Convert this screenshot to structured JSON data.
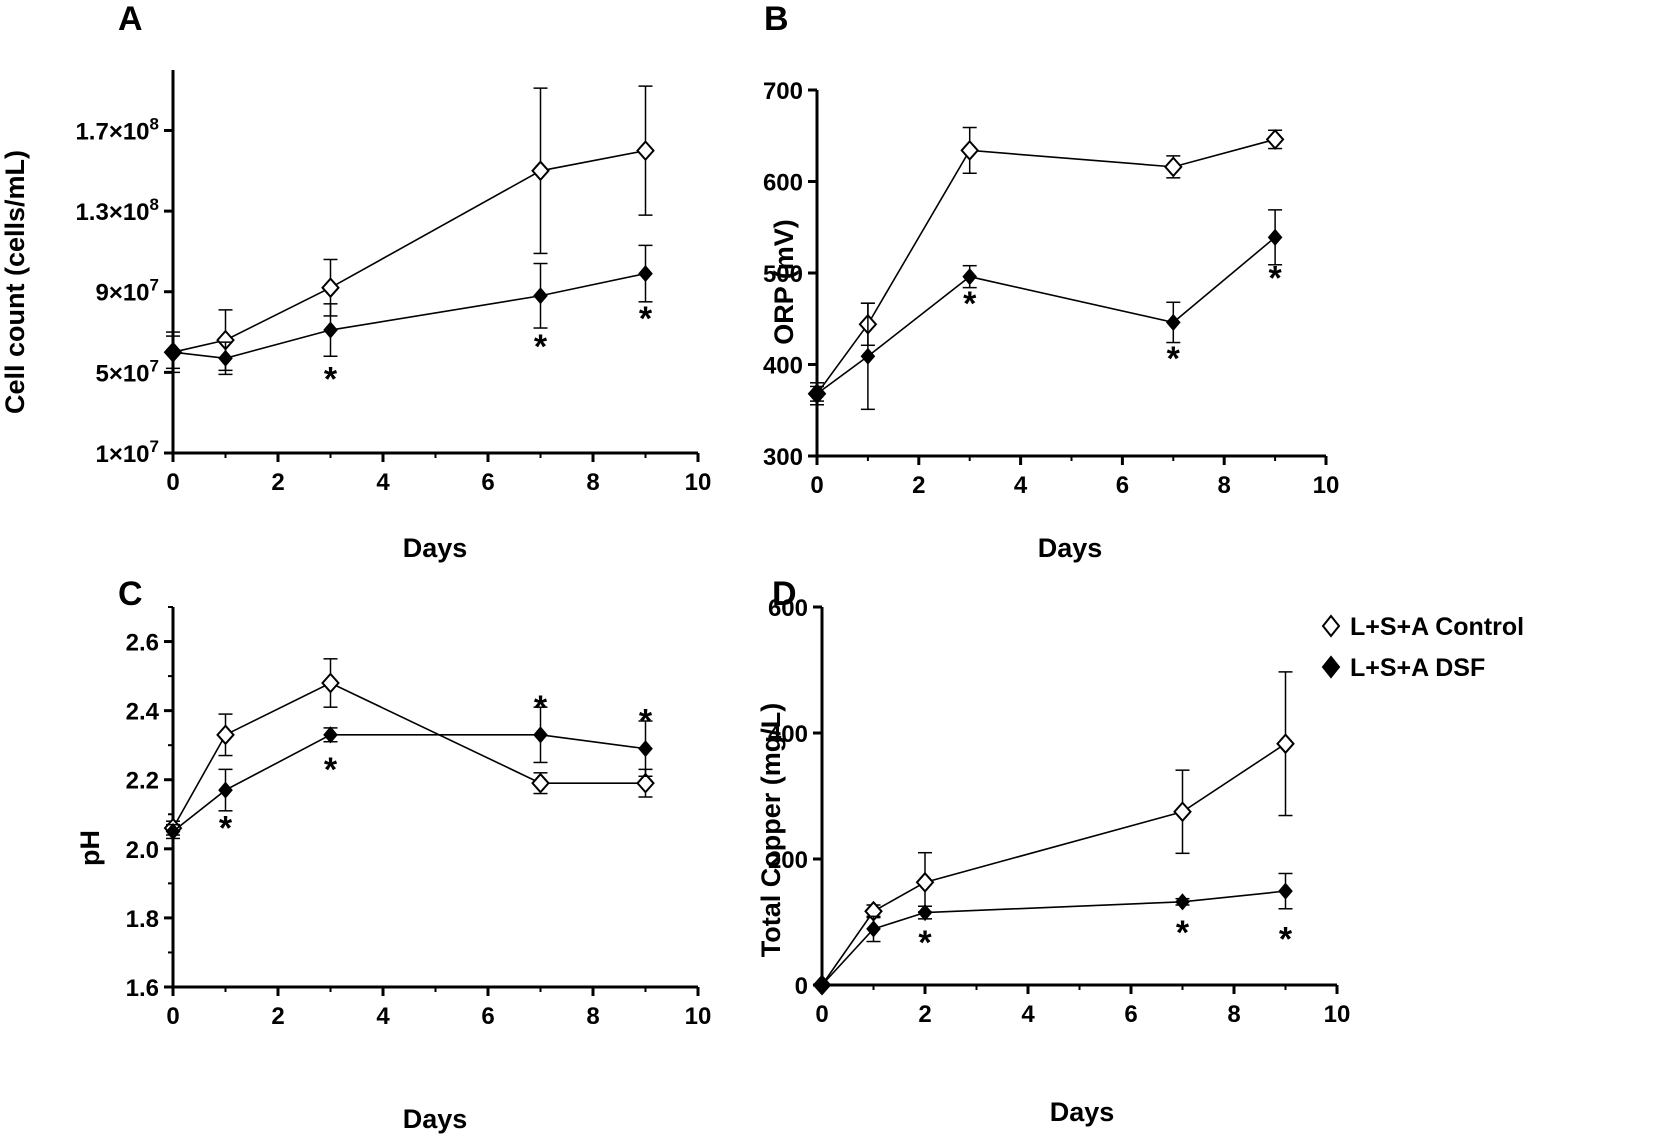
{
  "colors": {
    "axis": "#000000",
    "control_fill": "#ffffff",
    "dsf_fill": "#000000",
    "line": "#000000"
  },
  "legend": {
    "entries": [
      {
        "label": "L+S+A Control",
        "marker": "open-diamond"
      },
      {
        "label": "L+S+A DSF",
        "marker": "filled-diamond"
      }
    ]
  },
  "chart_data": [
    {
      "panel": "A",
      "type": "line",
      "xlabel": "Days",
      "ylabel": "Cell count (cells/mL)",
      "xlim": [
        0,
        10
      ],
      "ylim": [
        10000000,
        200000000
      ],
      "xticks": [
        0,
        2,
        4,
        6,
        8,
        10
      ],
      "yticks": [
        10000000,
        50000000,
        90000000,
        130000000,
        170000000
      ],
      "ytick_labels": [
        {
          "mant": "1",
          "exp": "7"
        },
        {
          "mant": "5",
          "exp": "7"
        },
        {
          "mant": "9",
          "exp": "7"
        },
        {
          "mant": "1.3",
          "exp": "8"
        },
        {
          "mant": "1.7",
          "exp": "8"
        }
      ],
      "series": [
        {
          "name": "L+S+A Control",
          "marker": "open-diamond",
          "x": [
            0,
            1,
            3,
            7,
            9
          ],
          "y": [
            60000000,
            66000000,
            92000000,
            150000000,
            160000000
          ],
          "err": [
            10000000,
            15000000,
            14000000,
            41000000,
            32000000
          ]
        },
        {
          "name": "L+S+A DSF",
          "marker": "filled-diamond",
          "x": [
            0,
            1,
            3,
            7,
            9
          ],
          "y": [
            60000000,
            57000000,
            71000000,
            88000000,
            99000000
          ],
          "err": [
            8000000,
            8000000,
            13000000,
            16000000,
            14000000
          ]
        }
      ],
      "significance": [
        {
          "x": 3,
          "y": 52000000,
          "label": "*"
        },
        {
          "x": 7,
          "y": 68000000,
          "label": "*"
        },
        {
          "x": 9,
          "y": 82000000,
          "label": "*"
        }
      ]
    },
    {
      "panel": "B",
      "type": "line",
      "xlabel": "Days",
      "ylabel": "ORP (mV)",
      "xlim": [
        0,
        10
      ],
      "ylim": [
        300,
        700
      ],
      "xticks": [
        0,
        2,
        4,
        6,
        8,
        10
      ],
      "yticks": [
        300,
        400,
        500,
        600,
        700
      ],
      "ytick_labels": [
        "300",
        "400",
        "500",
        "600",
        "700"
      ],
      "series": [
        {
          "name": "L+S+A Control",
          "marker": "open-diamond",
          "x": [
            0,
            1,
            3,
            7,
            9
          ],
          "y": [
            368,
            444,
            634,
            616,
            646
          ],
          "err": [
            8,
            23,
            25,
            12,
            10
          ]
        },
        {
          "name": "L+S+A DSF",
          "marker": "filled-diamond",
          "x": [
            0,
            1,
            3,
            7,
            9
          ],
          "y": [
            368,
            409,
            496,
            446,
            539
          ],
          "err": [
            12,
            58,
            12,
            22,
            30
          ]
        }
      ],
      "significance": [
        {
          "x": 3,
          "y": 478,
          "label": "*"
        },
        {
          "x": 7,
          "y": 418,
          "label": "*"
        },
        {
          "x": 9,
          "y": 506,
          "label": "*"
        }
      ]
    },
    {
      "panel": "C",
      "type": "line",
      "xlabel": "Days",
      "ylabel": "pH",
      "xlim": [
        0,
        10
      ],
      "ylim": [
        1.6,
        2.7
      ],
      "xticks": [
        0,
        2,
        4,
        6,
        8,
        10
      ],
      "yticks": [
        1.6,
        1.8,
        2.0,
        2.2,
        2.4,
        2.6
      ],
      "ytick_labels": [
        "1.6",
        "1.8",
        "2.0",
        "2.2",
        "2.4",
        "2.6"
      ],
      "series": [
        {
          "name": "L+S+A Control",
          "marker": "open-diamond",
          "x": [
            0,
            1,
            3,
            7,
            9
          ],
          "y": [
            2.06,
            2.33,
            2.48,
            2.19,
            2.19
          ],
          "err": [
            0.02,
            0.06,
            0.07,
            0.03,
            0.04
          ]
        },
        {
          "name": "L+S+A DSF",
          "marker": "filled-diamond",
          "x": [
            0,
            1,
            3,
            7,
            9
          ],
          "y": [
            2.05,
            2.17,
            2.33,
            2.33,
            2.29
          ],
          "err": [
            0.02,
            0.06,
            0.02,
            0.08,
            0.08
          ]
        }
      ],
      "significance": [
        {
          "x": 1,
          "y": 2.09,
          "label": "*"
        },
        {
          "x": 3,
          "y": 2.26,
          "label": "*"
        },
        {
          "x": 7,
          "y": 2.44,
          "label": "*"
        },
        {
          "x": 9,
          "y": 2.4,
          "label": "*"
        }
      ]
    },
    {
      "panel": "D",
      "type": "line",
      "xlabel": "Days",
      "ylabel": "Total Copper (mg/L)",
      "xlim": [
        0,
        10
      ],
      "ylim": [
        0,
        600
      ],
      "xticks": [
        0,
        2,
        4,
        6,
        8,
        10
      ],
      "yticks": [
        0,
        200,
        400,
        600
      ],
      "ytick_labels": [
        "0",
        "200",
        "400",
        "600"
      ],
      "series": [
        {
          "name": "L+S+A Control",
          "marker": "open-diamond",
          "x": [
            0,
            1,
            2,
            7,
            9
          ],
          "y": [
            0,
            117,
            163,
            275,
            383
          ],
          "err": [
            0,
            10,
            47,
            66,
            114
          ]
        },
        {
          "name": "L+S+A DSF",
          "marker": "filled-diamond",
          "x": [
            0,
            1,
            2,
            7,
            9
          ],
          "y": [
            0,
            89,
            115,
            132,
            149
          ],
          "err": [
            0,
            20,
            10,
            5,
            28
          ]
        }
      ],
      "significance": [
        {
          "x": 2,
          "y": 84,
          "label": "*"
        },
        {
          "x": 7,
          "y": 100,
          "label": "*"
        },
        {
          "x": 9,
          "y": 90,
          "label": "*"
        }
      ]
    }
  ]
}
